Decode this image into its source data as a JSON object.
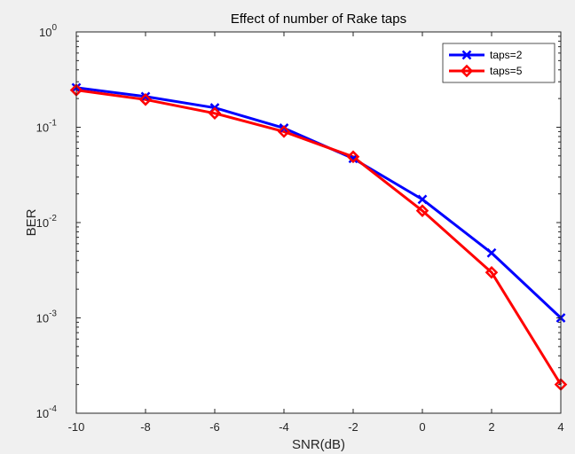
{
  "chart_data": {
    "type": "line",
    "title": "Effect of number of Rake taps",
    "xlabel": "SNR(dB)",
    "ylabel": "BER",
    "x": [
      -10,
      -8,
      -6,
      -4,
      -2,
      0,
      2,
      4
    ],
    "xlim": [
      -10,
      4
    ],
    "ylim": [
      0.0001,
      1
    ],
    "yscale": "log",
    "grid": false,
    "legend_position": "top-right",
    "xticks": [
      "-10",
      "-8",
      "-6",
      "-4",
      "-2",
      "0",
      "2",
      "4"
    ],
    "yticks": [
      {
        "value": 0.0001,
        "base": "10",
        "exp": "-4"
      },
      {
        "value": 0.001,
        "base": "10",
        "exp": "-3"
      },
      {
        "value": 0.01,
        "base": "10",
        "exp": "-2"
      },
      {
        "value": 0.1,
        "base": "10",
        "exp": "-1"
      },
      {
        "value": 1,
        "base": "10",
        "exp": "0"
      }
    ],
    "series": [
      {
        "name": "taps=2",
        "color": "#0000ff",
        "marker": "x",
        "values": [
          0.26,
          0.21,
          0.16,
          0.098,
          0.047,
          0.0175,
          0.0048,
          0.001
        ]
      },
      {
        "name": "taps=5",
        "color": "#ff0000",
        "marker": "diamond",
        "values": [
          0.245,
          0.195,
          0.14,
          0.09,
          0.049,
          0.0133,
          0.003,
          0.0002
        ]
      }
    ]
  }
}
